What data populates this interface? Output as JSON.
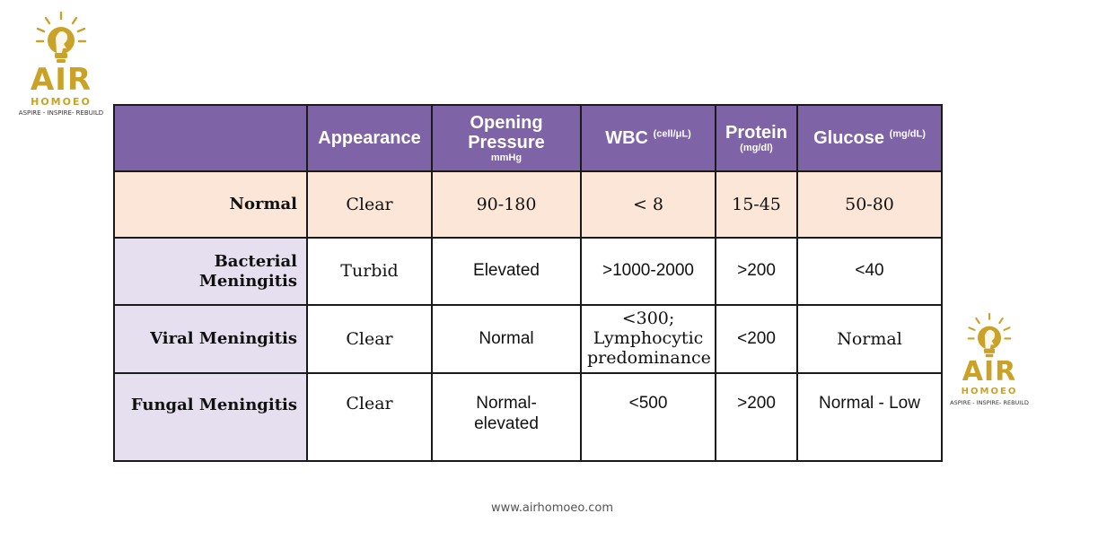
{
  "branding": {
    "brand_main": "AIR",
    "brand_sub": "HOMOEO",
    "tagline": "ASPIRE - INSPIRE- REBUILD",
    "accent_color": "#c9a227",
    "website": "www.airhomoeo.com"
  },
  "table": {
    "header_color": "#7e63a6",
    "normal_row_color": "#fbe6d7",
    "row_header_color": "#e6dff0",
    "columns": {
      "appearance": "Appearance",
      "opening_pressure": "Opening Pressure",
      "opening_pressure_unit": "mmHg",
      "wbc": "WBC",
      "wbc_unit": "(cell/μL)",
      "protein": "Protein",
      "protein_unit": "(mg/dl)",
      "glucose": "Glucose",
      "glucose_unit": "(mg/dL)"
    },
    "rows": [
      {
        "label": "Normal",
        "appearance": "Clear",
        "pressure": "90-180",
        "wbc": "< 8",
        "protein": "15-45",
        "glucose": "50-80"
      },
      {
        "label": "Bacterial Meningitis",
        "appearance": "Turbid",
        "pressure": "Elevated",
        "wbc": ">1000-2000",
        "protein": ">200",
        "glucose": "<40"
      },
      {
        "label": "Viral Meningitis",
        "appearance": "Clear",
        "pressure": "Normal",
        "wbc": "<300; Lymphocytic predominance",
        "protein": "<200",
        "glucose": "Normal"
      },
      {
        "label": "Fungal Meningitis",
        "appearance": "Clear",
        "pressure": "Normal-elevated",
        "wbc": "<500",
        "protein": ">200",
        "glucose": "Normal - Low"
      }
    ]
  }
}
